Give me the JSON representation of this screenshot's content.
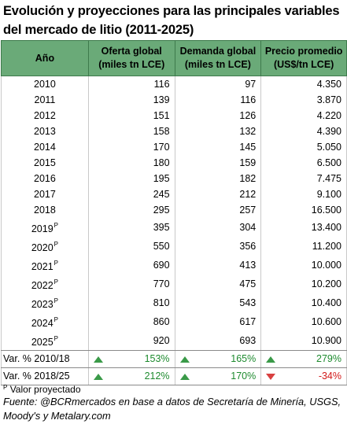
{
  "title": "Evolución y proyecciones para las principales variables del mercado de litio (2011-2025)",
  "headers": [
    "Año",
    "Oferta global (miles tn LCE)",
    "Demanda global (miles tn LCE)",
    "Precio promedio (US$/tn LCE)"
  ],
  "rows": [
    {
      "year": "2010",
      "projected": false,
      "supply": "116",
      "demand": "97",
      "price": "4.350"
    },
    {
      "year": "2011",
      "projected": false,
      "supply": "139",
      "demand": "116",
      "price": "3.870"
    },
    {
      "year": "2012",
      "projected": false,
      "supply": "151",
      "demand": "126",
      "price": "4.220"
    },
    {
      "year": "2013",
      "projected": false,
      "supply": "158",
      "demand": "132",
      "price": "4.390"
    },
    {
      "year": "2014",
      "projected": false,
      "supply": "170",
      "demand": "145",
      "price": "5.050"
    },
    {
      "year": "2015",
      "projected": false,
      "supply": "180",
      "demand": "159",
      "price": "6.500"
    },
    {
      "year": "2016",
      "projected": false,
      "supply": "195",
      "demand": "182",
      "price": "7.475"
    },
    {
      "year": "2017",
      "projected": false,
      "supply": "245",
      "demand": "212",
      "price": "9.100"
    },
    {
      "year": "2018",
      "projected": false,
      "supply": "295",
      "demand": "257",
      "price": "16.500"
    },
    {
      "year": "2019",
      "projected": true,
      "supply": "395",
      "demand": "304",
      "price": "13.400"
    },
    {
      "year": "2020",
      "projected": true,
      "supply": "550",
      "demand": "356",
      "price": "11.200"
    },
    {
      "year": "2021",
      "projected": true,
      "supply": "690",
      "demand": "413",
      "price": "10.000"
    },
    {
      "year": "2022",
      "projected": true,
      "supply": "770",
      "demand": "475",
      "price": "10.200"
    },
    {
      "year": "2023",
      "projected": true,
      "supply": "810",
      "demand": "543",
      "price": "10.400"
    },
    {
      "year": "2024",
      "projected": true,
      "supply": "860",
      "demand": "617",
      "price": "10.600"
    },
    {
      "year": "2025",
      "projected": true,
      "supply": "920",
      "demand": "693",
      "price": "10.900"
    }
  ],
  "projected_mark": "P",
  "variations": [
    {
      "label": "Var. % 2010/18",
      "cells": [
        {
          "value": "153%",
          "direction": "up"
        },
        {
          "value": "165%",
          "direction": "up"
        },
        {
          "value": "279%",
          "direction": "up"
        }
      ]
    },
    {
      "label": "Var. % 2018/25",
      "cells": [
        {
          "value": "212%",
          "direction": "up"
        },
        {
          "value": "170%",
          "direction": "up"
        },
        {
          "value": "-34%",
          "direction": "down"
        }
      ]
    }
  ],
  "footnote": {
    "mark": "P",
    "text": "Valor proyectado"
  },
  "source": "Fuente: @BCRmercados en base a datos de Secretaría de Minería, USGS, Moody's y Metalary.com",
  "colors": {
    "header_bg": "#6aaa78",
    "positive": "#1d8a2e",
    "negative": "#d21818"
  }
}
